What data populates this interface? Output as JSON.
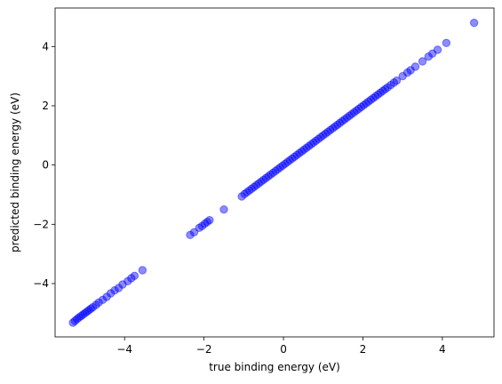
{
  "chart_data": {
    "type": "scatter",
    "xlabel": "true binding energy (eV)",
    "ylabel": "predicted binding energy (eV)",
    "xlim": [
      -5.75,
      5.3
    ],
    "ylim": [
      -5.8,
      5.3
    ],
    "xticks": [
      -4,
      -2,
      0,
      2,
      4
    ],
    "yticks": [
      -4,
      -2,
      0,
      2,
      4
    ],
    "xtick_labels": [
      "−4",
      "−2",
      "0",
      "2",
      "4"
    ],
    "ytick_labels": [
      "−4",
      "−2",
      "0",
      "2",
      "4"
    ],
    "grid": false,
    "marker_color": "#0000ff",
    "marker_alpha": 0.45,
    "series": [
      {
        "points": [
          [
            -5.3,
            -5.32
          ],
          [
            -5.25,
            -5.26
          ],
          [
            -5.2,
            -5.2
          ],
          [
            -5.15,
            -5.15
          ],
          [
            -5.1,
            -5.1
          ],
          [
            -5.05,
            -5.05
          ],
          [
            -5.0,
            -5.0
          ],
          [
            -4.95,
            -4.95
          ],
          [
            -4.9,
            -4.9
          ],
          [
            -4.85,
            -4.85
          ],
          [
            -4.8,
            -4.8
          ],
          [
            -4.72,
            -4.72
          ],
          [
            -4.65,
            -4.64
          ],
          [
            -4.55,
            -4.55
          ],
          [
            -4.45,
            -4.45
          ],
          [
            -4.35,
            -4.33
          ],
          [
            -4.25,
            -4.23
          ],
          [
            -4.15,
            -4.15
          ],
          [
            -4.05,
            -4.03
          ],
          [
            -3.92,
            -3.92
          ],
          [
            -3.83,
            -3.82
          ],
          [
            -3.75,
            -3.74
          ],
          [
            -3.55,
            -3.55
          ],
          [
            -2.35,
            -2.36
          ],
          [
            -2.25,
            -2.27
          ],
          [
            -2.12,
            -2.12
          ],
          [
            -2.05,
            -2.06
          ],
          [
            -1.98,
            -1.98
          ],
          [
            -1.92,
            -1.92
          ],
          [
            -1.86,
            -1.86
          ],
          [
            -1.5,
            -1.5
          ],
          [
            -1.05,
            -1.06
          ],
          [
            -0.98,
            -0.98
          ],
          [
            -0.92,
            -0.92
          ],
          [
            -0.86,
            -0.86
          ],
          [
            -0.8,
            -0.8
          ],
          [
            -0.74,
            -0.74
          ],
          [
            -0.68,
            -0.68
          ],
          [
            -0.62,
            -0.62
          ],
          [
            -0.56,
            -0.56
          ],
          [
            -0.5,
            -0.5
          ],
          [
            -0.44,
            -0.44
          ],
          [
            -0.38,
            -0.38
          ],
          [
            -0.32,
            -0.32
          ],
          [
            -0.26,
            -0.26
          ],
          [
            -0.2,
            -0.2
          ],
          [
            -0.14,
            -0.14
          ],
          [
            -0.08,
            -0.08
          ],
          [
            -0.02,
            -0.02
          ],
          [
            0.04,
            0.04
          ],
          [
            0.1,
            0.1
          ],
          [
            0.16,
            0.16
          ],
          [
            0.22,
            0.22
          ],
          [
            0.28,
            0.28
          ],
          [
            0.34,
            0.34
          ],
          [
            0.4,
            0.4
          ],
          [
            0.46,
            0.46
          ],
          [
            0.52,
            0.52
          ],
          [
            0.58,
            0.58
          ],
          [
            0.64,
            0.64
          ],
          [
            0.7,
            0.7
          ],
          [
            0.76,
            0.76
          ],
          [
            0.82,
            0.82
          ],
          [
            0.88,
            0.88
          ],
          [
            0.94,
            0.94
          ],
          [
            1.0,
            1.0
          ],
          [
            1.06,
            1.06
          ],
          [
            1.12,
            1.12
          ],
          [
            1.18,
            1.18
          ],
          [
            1.24,
            1.24
          ],
          [
            1.3,
            1.3
          ],
          [
            1.36,
            1.36
          ],
          [
            1.42,
            1.42
          ],
          [
            1.48,
            1.48
          ],
          [
            1.54,
            1.54
          ],
          [
            1.6,
            1.6
          ],
          [
            1.66,
            1.66
          ],
          [
            1.72,
            1.72
          ],
          [
            1.78,
            1.78
          ],
          [
            1.84,
            1.84
          ],
          [
            1.9,
            1.9
          ],
          [
            1.96,
            1.96
          ],
          [
            2.02,
            2.02
          ],
          [
            2.08,
            2.08
          ],
          [
            2.14,
            2.14
          ],
          [
            2.2,
            2.2
          ],
          [
            2.26,
            2.26
          ],
          [
            2.32,
            2.32
          ],
          [
            2.38,
            2.38
          ],
          [
            2.44,
            2.44
          ],
          [
            2.5,
            2.5
          ],
          [
            2.56,
            2.56
          ],
          [
            2.62,
            2.62
          ],
          [
            2.7,
            2.7
          ],
          [
            2.78,
            2.78
          ],
          [
            2.85,
            2.85
          ],
          [
            3.0,
            3.0
          ],
          [
            3.12,
            3.12
          ],
          [
            3.2,
            3.2
          ],
          [
            3.32,
            3.32
          ],
          [
            3.5,
            3.5
          ],
          [
            3.65,
            3.66
          ],
          [
            3.75,
            3.76
          ],
          [
            3.88,
            3.89
          ],
          [
            4.1,
            4.12
          ],
          [
            4.8,
            4.8
          ]
        ]
      }
    ]
  }
}
